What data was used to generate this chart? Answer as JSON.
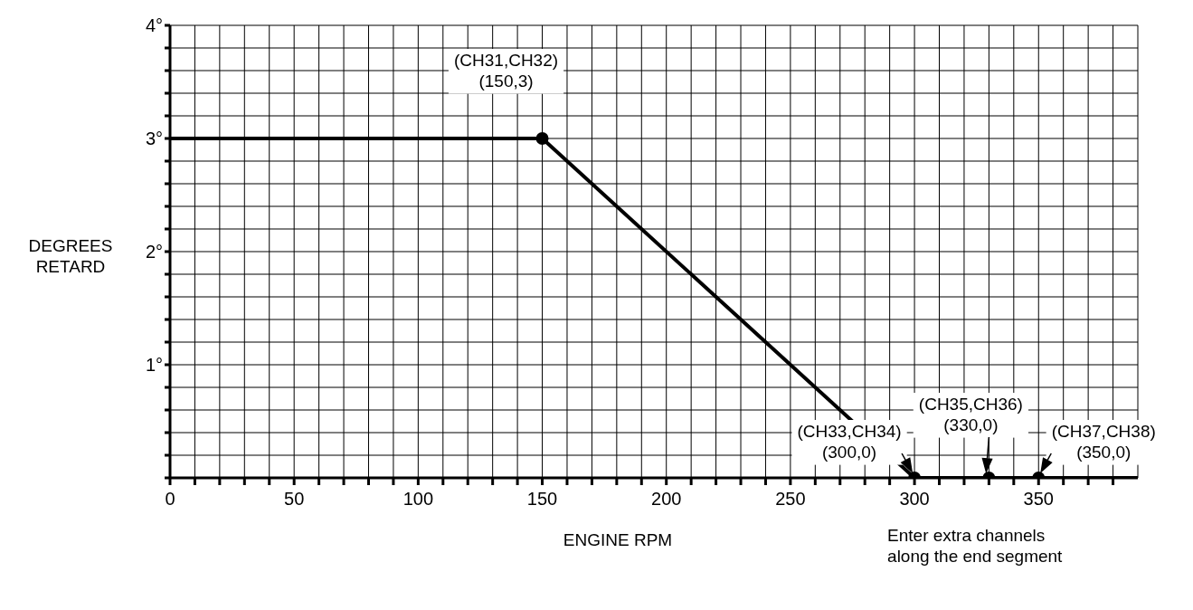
{
  "chart_data": {
    "type": "line",
    "xlabel": "ENGINE RPM",
    "ylabel": "DEGREES RETARD",
    "xlim": [
      0,
      390
    ],
    "ylim": [
      0,
      4
    ],
    "xticks": [
      0,
      {
        "value": 10,
        "label": null
      },
      {
        "value": 20,
        "label": null
      },
      {
        "value": 30,
        "label": null
      },
      {
        "value": 40,
        "label": null
      },
      50,
      {
        "value": 60,
        "label": null
      },
      {
        "value": 70,
        "label": null
      },
      {
        "value": 80,
        "label": null
      },
      {
        "value": 90,
        "label": null
      },
      100,
      {
        "value": 110,
        "label": null
      },
      {
        "value": 120,
        "label": null
      },
      {
        "value": 130,
        "label": null
      },
      {
        "value": 140,
        "label": null
      },
      150,
      {
        "value": 160,
        "label": null
      },
      {
        "value": 170,
        "label": null
      },
      {
        "value": 180,
        "label": null
      },
      {
        "value": 190,
        "label": null
      },
      200,
      {
        "value": 210,
        "label": null
      },
      {
        "value": 220,
        "label": null
      },
      {
        "value": 230,
        "label": null
      },
      {
        "value": 240,
        "label": null
      },
      250,
      {
        "value": 260,
        "label": null
      },
      {
        "value": 270,
        "label": null
      },
      {
        "value": 280,
        "label": null
      },
      {
        "value": 290,
        "label": null
      },
      300,
      {
        "value": 310,
        "label": null
      },
      {
        "value": 320,
        "label": null
      },
      {
        "value": 330,
        "label": null
      },
      {
        "value": 340,
        "label": null
      },
      350,
      {
        "value": 360,
        "label": null
      },
      {
        "value": 370,
        "label": null
      },
      {
        "value": 380,
        "label": null
      }
    ],
    "yticks": [
      {
        "value": 0,
        "label": null
      },
      {
        "value": 0.2,
        "label": null
      },
      {
        "value": 0.4,
        "label": null
      },
      {
        "value": 0.6,
        "label": null
      },
      {
        "value": 0.8,
        "label": null
      },
      {
        "value": 1,
        "label": "1°"
      },
      {
        "value": 1.2,
        "label": null
      },
      {
        "value": 1.4,
        "label": null
      },
      {
        "value": 1.6,
        "label": null
      },
      {
        "value": 1.8,
        "label": null
      },
      {
        "value": 2,
        "label": "2°"
      },
      {
        "value": 2.2,
        "label": null
      },
      {
        "value": 2.4,
        "label": null
      },
      {
        "value": 2.6,
        "label": null
      },
      {
        "value": 2.8,
        "label": null
      },
      {
        "value": 3,
        "label": "3°"
      },
      {
        "value": 3.2,
        "label": null
      },
      {
        "value": 3.4,
        "label": null
      },
      {
        "value": 3.6,
        "label": null
      },
      {
        "value": 3.8,
        "label": null
      },
      {
        "value": 4,
        "label": "4°"
      }
    ],
    "grid": true,
    "series": [
      {
        "type": "line",
        "color": "#000000",
        "x": [
          0,
          150,
          300,
          390
        ],
        "values": [
          3,
          3,
          0,
          0
        ],
        "marker": "none"
      },
      {
        "type": "scatter",
        "color": "#000000",
        "x": [
          150,
          300,
          330,
          350
        ],
        "values": [
          3,
          0,
          0,
          0
        ],
        "marker": "circle"
      }
    ],
    "annotations": [
      {
        "text": "(CH31,CH32)\n(150,3)",
        "x": 150,
        "y": 3
      },
      {
        "text": "(CH33,CH34)\n(300,0)",
        "x": 300,
        "y": 0
      },
      {
        "text": "(CH35,CH36)\n(330,0)",
        "x": 330,
        "y": 0
      },
      {
        "text": "(CH37,CH38)\n(350,0)",
        "x": 350,
        "y": 0
      },
      "Enter extra channels\nalong the end segment"
    ]
  }
}
